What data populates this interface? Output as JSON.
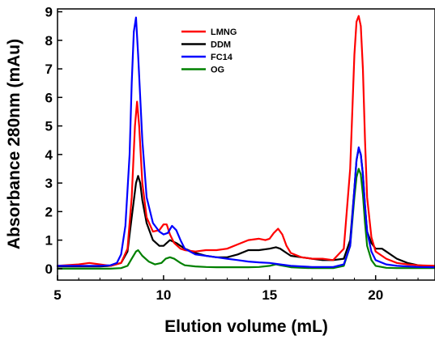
{
  "chart_data": {
    "type": "line",
    "title": "",
    "xlabel": "Elution volume (mL)",
    "ylabel": "Absorbance 280nm (mAu)",
    "xlim": [
      5,
      22.8
    ],
    "ylim": [
      -0.4,
      9.1
    ],
    "x_ticks": [
      5,
      10,
      15,
      20
    ],
    "y_ticks": [
      0,
      1,
      2,
      3,
      4,
      5,
      6,
      7,
      8,
      9
    ],
    "grid": false,
    "legend_position": "top-center",
    "series": [
      {
        "name": "LMNG",
        "color": "#ff0000",
        "x": [
          5.0,
          6.0,
          6.5,
          7.0,
          7.5,
          8.0,
          8.3,
          8.5,
          8.65,
          8.75,
          8.85,
          9.0,
          9.2,
          9.5,
          9.8,
          10.0,
          10.15,
          10.3,
          10.5,
          10.8,
          11.0,
          11.5,
          12.0,
          12.5,
          13.0,
          13.5,
          14.0,
          14.5,
          14.8,
          15.0,
          15.2,
          15.4,
          15.6,
          15.8,
          16.0,
          16.5,
          17.0,
          17.5,
          18.0,
          18.5,
          18.8,
          19.0,
          19.1,
          19.2,
          19.3,
          19.4,
          19.5,
          19.6,
          19.8,
          20.0,
          20.5,
          21.0,
          21.5,
          22.0,
          22.8
        ],
        "y": [
          0.1,
          0.15,
          0.2,
          0.15,
          0.1,
          0.2,
          0.7,
          2.5,
          5.0,
          5.85,
          5.0,
          3.0,
          1.8,
          1.3,
          1.35,
          1.55,
          1.55,
          1.2,
          0.9,
          0.7,
          0.65,
          0.6,
          0.65,
          0.65,
          0.7,
          0.85,
          1.0,
          1.05,
          1.0,
          1.05,
          1.25,
          1.4,
          1.2,
          0.8,
          0.55,
          0.4,
          0.35,
          0.35,
          0.3,
          0.7,
          3.5,
          7.5,
          8.65,
          8.85,
          8.5,
          7.0,
          4.5,
          2.5,
          1.1,
          0.6,
          0.35,
          0.2,
          0.15,
          0.12,
          0.1
        ]
      },
      {
        "name": "DDM",
        "color": "#000000",
        "x": [
          5.0,
          6.0,
          7.0,
          7.5,
          8.0,
          8.3,
          8.5,
          8.7,
          8.8,
          8.9,
          9.0,
          9.2,
          9.5,
          9.8,
          10.0,
          10.3,
          10.6,
          11.0,
          11.5,
          12.0,
          12.5,
          13.0,
          13.5,
          14.0,
          14.5,
          15.0,
          15.3,
          15.5,
          15.8,
          16.0,
          16.5,
          17.0,
          17.5,
          18.0,
          18.5,
          18.8,
          19.0,
          19.1,
          19.2,
          19.3,
          19.4,
          19.5,
          19.6,
          19.8,
          20.0,
          20.3,
          20.5,
          21.0,
          21.5,
          22.0,
          22.8
        ],
        "y": [
          0.08,
          0.08,
          0.08,
          0.1,
          0.2,
          0.6,
          1.8,
          3.0,
          3.25,
          3.0,
          2.4,
          1.6,
          1.0,
          0.8,
          0.8,
          1.0,
          0.9,
          0.7,
          0.55,
          0.45,
          0.4,
          0.4,
          0.5,
          0.65,
          0.65,
          0.7,
          0.75,
          0.7,
          0.55,
          0.45,
          0.4,
          0.35,
          0.3,
          0.3,
          0.35,
          1.0,
          2.8,
          3.8,
          4.2,
          4.0,
          3.3,
          2.2,
          1.3,
          0.9,
          0.7,
          0.7,
          0.6,
          0.35,
          0.2,
          0.12,
          0.08
        ]
      },
      {
        "name": "FC14",
        "color": "#0000ff",
        "x": [
          5.0,
          6.0,
          7.0,
          7.5,
          7.8,
          8.0,
          8.2,
          8.4,
          8.5,
          8.6,
          8.7,
          8.8,
          9.0,
          9.2,
          9.5,
          9.8,
          10.0,
          10.2,
          10.4,
          10.6,
          10.8,
          11.0,
          11.5,
          12.0,
          12.5,
          13.0,
          13.5,
          14.0,
          14.5,
          15.0,
          15.5,
          16.0,
          16.5,
          17.0,
          17.5,
          18.0,
          18.5,
          18.8,
          19.0,
          19.1,
          19.2,
          19.3,
          19.4,
          19.5,
          19.6,
          19.8,
          20.0,
          20.5,
          21.0,
          21.5,
          22.0,
          22.8
        ],
        "y": [
          0.1,
          0.1,
          0.1,
          0.12,
          0.2,
          0.5,
          1.5,
          4.0,
          6.5,
          8.3,
          8.8,
          7.5,
          4.5,
          2.5,
          1.6,
          1.3,
          1.2,
          1.25,
          1.5,
          1.35,
          1.0,
          0.7,
          0.5,
          0.45,
          0.4,
          0.35,
          0.3,
          0.25,
          0.22,
          0.2,
          0.15,
          0.1,
          0.08,
          0.06,
          0.06,
          0.06,
          0.15,
          0.8,
          2.8,
          3.8,
          4.25,
          4.0,
          3.3,
          2.2,
          1.3,
          0.6,
          0.3,
          0.15,
          0.1,
          0.08,
          0.06,
          0.05
        ]
      },
      {
        "name": "OG",
        "color": "#008000",
        "x": [
          5.0,
          6.0,
          7.0,
          7.5,
          8.0,
          8.3,
          8.5,
          8.7,
          8.8,
          8.9,
          9.0,
          9.3,
          9.6,
          9.9,
          10.1,
          10.3,
          10.5,
          10.8,
          11.0,
          11.5,
          12.0,
          12.5,
          13.0,
          13.5,
          14.0,
          14.5,
          15.0,
          15.3,
          15.5,
          15.8,
          16.0,
          16.5,
          17.0,
          17.5,
          18.0,
          18.5,
          18.8,
          19.0,
          19.1,
          19.2,
          19.3,
          19.4,
          19.5,
          19.6,
          19.8,
          20.0,
          20.5,
          21.0,
          22.0,
          22.8
        ],
        "y": [
          0.0,
          0.0,
          0.0,
          0.0,
          0.02,
          0.1,
          0.35,
          0.6,
          0.65,
          0.55,
          0.45,
          0.25,
          0.15,
          0.2,
          0.35,
          0.4,
          0.35,
          0.2,
          0.12,
          0.08,
          0.06,
          0.05,
          0.05,
          0.05,
          0.05,
          0.06,
          0.1,
          0.15,
          0.12,
          0.08,
          0.05,
          0.03,
          0.02,
          0.02,
          0.02,
          0.1,
          0.8,
          2.5,
          3.2,
          3.5,
          3.3,
          2.6,
          1.6,
          0.8,
          0.3,
          0.1,
          0.03,
          0.02,
          0.02,
          0.02
        ]
      }
    ]
  }
}
